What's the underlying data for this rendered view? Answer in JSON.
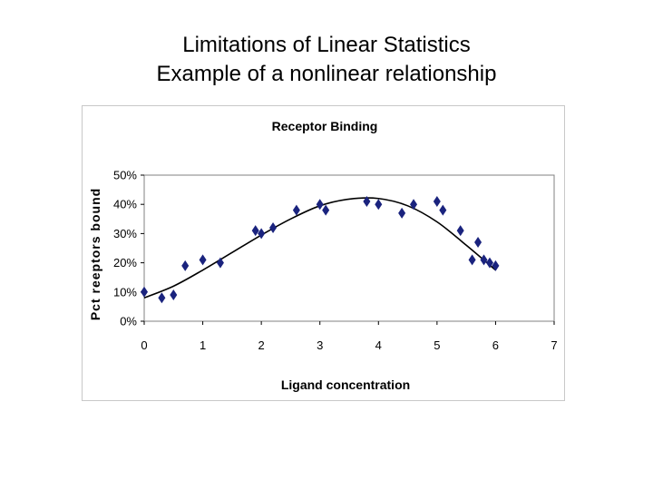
{
  "slide": {
    "title_line1": "Limitations of Linear Statistics",
    "title_line2": "Example of a nonlinear relationship"
  },
  "colors": {
    "marker": "#1a237e",
    "curve": "#000000",
    "plot_border": "#808080",
    "frame_border": "#c8c8c8"
  },
  "chart_data": {
    "type": "scatter",
    "title": "Receptor Binding",
    "xlabel": "Ligand concentration",
    "ylabel": "Pct reeptors bound",
    "xlim": [
      0,
      7
    ],
    "ylim": [
      0,
      50
    ],
    "x_ticks": [
      0,
      1,
      2,
      3,
      4,
      5,
      6,
      7
    ],
    "y_ticks": [
      0,
      10,
      20,
      30,
      40,
      50
    ],
    "y_tick_labels": [
      "0%",
      "10%",
      "20%",
      "30%",
      "40%",
      "50%"
    ],
    "grid": false,
    "legend": "none",
    "series": [
      {
        "marker": "diamond",
        "x": [
          0,
          0.3,
          0.5,
          0.7,
          1.0,
          1.3,
          1.9,
          2.0,
          2.2,
          2.6,
          3.0,
          3.1,
          3.8,
          4.0,
          4.4,
          4.6,
          5.0,
          5.1,
          5.4,
          5.6,
          5.7,
          5.8,
          5.9,
          6.0
        ],
        "y": [
          10,
          8,
          9,
          19,
          21,
          20,
          31,
          30,
          32,
          38,
          40,
          38,
          41,
          40,
          37,
          40,
          41,
          38,
          31,
          21,
          27,
          21,
          20,
          19
        ]
      }
    ],
    "trendline": {
      "type": "polynomial",
      "x": [
        0,
        0.5,
        1,
        1.5,
        2,
        2.5,
        3,
        3.5,
        4,
        4.5,
        5,
        5.5,
        6
      ],
      "y": [
        8,
        12,
        17.5,
        23.5,
        29.5,
        35,
        39.5,
        41.8,
        42,
        39.5,
        34,
        26,
        17.5
      ]
    }
  }
}
